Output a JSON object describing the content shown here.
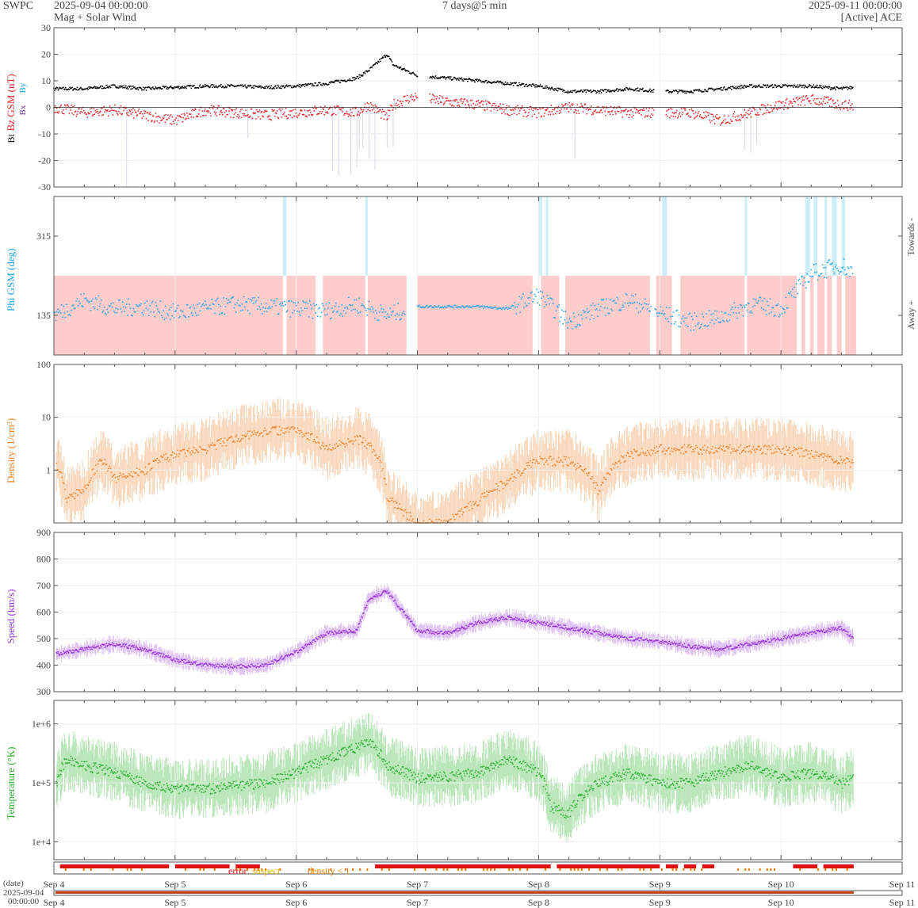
{
  "header": {
    "brand": "SWPC",
    "start_time": "2025-09-04 00:00:00",
    "subtitle": "Mag + Solar Wind",
    "cadence": "7 days@5 min",
    "end_time": "2025-09-11 00:00:00",
    "source": "[Active] ACE"
  },
  "colors": {
    "bt": "#000000",
    "bz": "#e8262a",
    "by": "#1aa3ea",
    "bx": "#7030a0",
    "phi": "#1aa3ea",
    "away_band": "#ffcccc",
    "towards_band": "#cceefa",
    "density": "#f28022",
    "density_band": "#f8c7a0",
    "speed": "#9a33d9",
    "speed_band": "#d9b3f2",
    "temperature": "#26b02a",
    "temperature_band": "#a8e0a8",
    "error": "#e01010",
    "suspect": "#e8b000",
    "density_lt1": "#f07800"
  },
  "x_axis": {
    "ticks": [
      "Sep 4",
      "Sep 5",
      "Sep 6",
      "Sep 7",
      "Sep 8",
      "Sep 9",
      "Sep 10",
      "Sep 11"
    ],
    "date_label": "(date)",
    "overview_start_date": "2025-09-04",
    "overview_start_time": "00:00:00"
  },
  "flags_legend": {
    "error": "error",
    "suspect": "suspect",
    "density": "density < 1"
  },
  "chart_data": [
    {
      "type": "line",
      "panel": "mag",
      "ylabels": [
        "Bt",
        "Bz GSM (nT)",
        "Bx",
        "By"
      ],
      "ylim": [
        -30,
        30
      ],
      "yticks": [
        "30",
        "20",
        "10",
        "0",
        "-10",
        "-20",
        "-30"
      ],
      "x_days": [
        0,
        0.25,
        0.5,
        0.75,
        1.0,
        1.25,
        1.5,
        1.75,
        2.0,
        2.25,
        2.5,
        2.6,
        2.75,
        2.8,
        2.9,
        3.0,
        3.25,
        3.5,
        3.75,
        4.0,
        4.25,
        4.5,
        4.75,
        5.0,
        5.25,
        5.5,
        5.75,
        6.0,
        6.25,
        6.5,
        6.6
      ],
      "series": [
        {
          "name": "Bt",
          "values": [
            7,
            7,
            8,
            7,
            7.5,
            8,
            8,
            7.5,
            8,
            9,
            11,
            14,
            20,
            16,
            14,
            12,
            11,
            10,
            9,
            8,
            6,
            6,
            7,
            6,
            6,
            7,
            8,
            8,
            8,
            7,
            7.5
          ]
        },
        {
          "name": "Bz",
          "values": [
            0,
            -2,
            -1,
            -3,
            -5,
            -1,
            -2,
            -3,
            -2,
            -1,
            -2,
            1,
            -4,
            1,
            3,
            4,
            2,
            1,
            -1,
            -2,
            0,
            -1,
            -2,
            -2,
            -2,
            -5,
            -2,
            1,
            3,
            1,
            0.5
          ]
        }
      ]
    },
    {
      "type": "scatter",
      "panel": "phi",
      "ylabel": "Phi GSM (deg)",
      "right_labels": [
        "Towards -",
        "Away +"
      ],
      "ylim": [
        45,
        405
      ],
      "yticks": [
        "315",
        "135"
      ],
      "x_days": [
        0,
        0.25,
        0.5,
        0.75,
        1.0,
        1.25,
        1.5,
        1.75,
        2.0,
        2.25,
        2.5,
        2.75,
        3.0,
        3.25,
        3.5,
        3.75,
        4.0,
        4.25,
        4.5,
        4.75,
        5.0,
        5.25,
        5.5,
        5.75,
        6.0,
        6.25,
        6.5,
        6.6
      ],
      "values": [
        135,
        170,
        150,
        155,
        140,
        150,
        160,
        155,
        150,
        145,
        160,
        135,
        155,
        155,
        155,
        150,
        180,
        120,
        150,
        170,
        140,
        120,
        130,
        160,
        150,
        230,
        250,
        230
      ]
    },
    {
      "type": "line",
      "panel": "density",
      "ylabel": "Density (1/cm³)",
      "scale": "log",
      "ylim": [
        0.1,
        100
      ],
      "yticks": [
        "100",
        "10",
        "1"
      ],
      "x_days": [
        0,
        0.1,
        0.25,
        0.4,
        0.5,
        0.75,
        1.0,
        1.25,
        1.5,
        1.75,
        2.0,
        2.25,
        2.5,
        2.6,
        2.75,
        2.9,
        3.0,
        3.25,
        3.5,
        3.75,
        4.0,
        4.25,
        4.5,
        4.75,
        5.0,
        5.25,
        5.5,
        5.75,
        6.0,
        6.25,
        6.5,
        6.6
      ],
      "values": [
        1.5,
        0.3,
        0.4,
        1.5,
        0.7,
        1.0,
        2.0,
        2.5,
        4.0,
        5.5,
        6.0,
        2.5,
        4.0,
        3.0,
        0.3,
        0.15,
        0.1,
        0.1,
        0.25,
        0.6,
        1.5,
        1.5,
        0.4,
        2.0,
        2.5,
        2.5,
        2.5,
        2.5,
        2.5,
        2.0,
        1.5,
        1.3
      ]
    },
    {
      "type": "line",
      "panel": "speed",
      "ylabel": "Speed (km/s)",
      "ylim": [
        300,
        900
      ],
      "yticks": [
        "900",
        "800",
        "700",
        "600",
        "500",
        "400",
        "300"
      ],
      "x_days": [
        0,
        0.25,
        0.5,
        0.75,
        1.0,
        1.25,
        1.5,
        1.75,
        2.0,
        2.25,
        2.5,
        2.6,
        2.75,
        3.0,
        3.25,
        3.5,
        3.75,
        4.0,
        4.25,
        4.5,
        4.75,
        5.0,
        5.25,
        5.5,
        5.75,
        6.0,
        6.25,
        6.5,
        6.6
      ],
      "values": [
        440,
        460,
        480,
        460,
        420,
        400,
        395,
        400,
        450,
        520,
        530,
        650,
        680,
        530,
        520,
        560,
        580,
        560,
        540,
        520,
        500,
        490,
        470,
        460,
        480,
        500,
        520,
        540,
        500
      ]
    },
    {
      "type": "line",
      "panel": "temperature",
      "ylabel": "Temperature (°K)",
      "scale": "log",
      "ylim": [
        5000,
        2500000
      ],
      "yticks": [
        "1e+6",
        "1e+5",
        "1e+4"
      ],
      "x_days": [
        0,
        0.1,
        0.25,
        0.5,
        0.75,
        1.0,
        1.25,
        1.5,
        1.75,
        2.0,
        2.25,
        2.5,
        2.6,
        2.75,
        3.0,
        3.25,
        3.5,
        3.75,
        4.0,
        4.1,
        4.25,
        4.5,
        4.75,
        5.0,
        5.25,
        5.5,
        5.75,
        6.0,
        6.25,
        6.5,
        6.6
      ],
      "values": [
        50000,
        250000,
        200000,
        150000,
        100000,
        80000,
        80000,
        90000,
        100000,
        150000,
        250000,
        400000,
        500000,
        200000,
        120000,
        130000,
        150000,
        250000,
        150000,
        40000,
        30000,
        100000,
        150000,
        100000,
        100000,
        150000,
        200000,
        120000,
        150000,
        100000,
        120000
      ]
    }
  ]
}
